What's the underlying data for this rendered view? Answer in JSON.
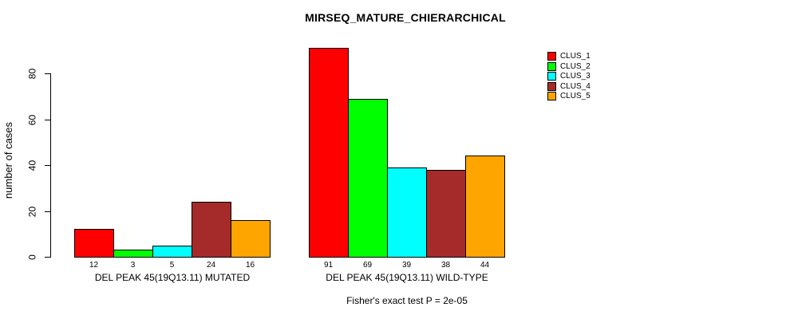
{
  "chart_data": {
    "type": "bar",
    "title": "MIRSEQ_MATURE_CHIERARCHICAL",
    "xlabel": "",
    "ylabel": "number of cases",
    "annotation": "Fisher's exact test P = 2e-05",
    "categories": [
      "DEL PEAK 45(19Q13.11) MUTATED",
      "DEL PEAK 45(19Q13.11) WILD-TYPE"
    ],
    "series": [
      {
        "name": "CLUS_1",
        "color": "#FF0000",
        "values": [
          12,
          91
        ]
      },
      {
        "name": "CLUS_2",
        "color": "#00FF00",
        "values": [
          3,
          69
        ]
      },
      {
        "name": "CLUS_3",
        "color": "#00FFFF",
        "values": [
          5,
          39
        ]
      },
      {
        "name": "CLUS_4",
        "color": "#A52A2A",
        "values": [
          24,
          38
        ]
      },
      {
        "name": "CLUS_5",
        "color": "#FFA500",
        "values": [
          16,
          44
        ]
      }
    ],
    "show_bar_values": true,
    "yticks": [
      0,
      20,
      40,
      60,
      80
    ],
    "ylim": [
      0,
      91
    ],
    "grid": false,
    "legend_position": "top-right",
    "background": "#FFFFFF"
  }
}
